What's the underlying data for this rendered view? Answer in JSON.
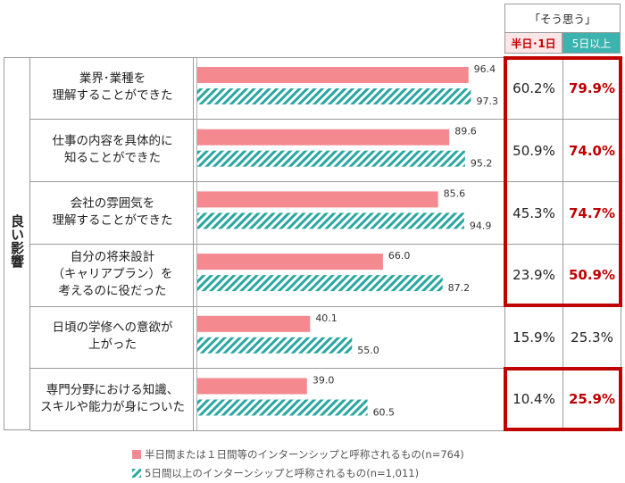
{
  "side_label": "良い影響",
  "header": {
    "group": "「そう思う」",
    "col1": "半日･1日",
    "col2": "5日以上"
  },
  "colors": {
    "series1": "#f4898f",
    "series2": "#2aa7a0",
    "highlight": "#ff0000",
    "col2_header_bg": "#3cb3ae",
    "col1_header_bg": "#fde6e8"
  },
  "rows": [
    {
      "label": "業界･業種を\n理解することができた",
      "short": "96.4",
      "long": "97.3",
      "pct_short": "60.2%",
      "pct_long": "79.9%"
    },
    {
      "label": "仕事の内容を具体的に\n知ることができた",
      "short": "89.6",
      "long": "95.2",
      "pct_short": "50.9%",
      "pct_long": "74.0%"
    },
    {
      "label": "会社の雰囲気を\n理解することができた",
      "short": "85.6",
      "long": "94.9",
      "pct_short": "45.3%",
      "pct_long": "74.7%"
    },
    {
      "label": "自分の将来設計\n（キャリアプラン）を\n考えるのに役だった",
      "short": "66.0",
      "long": "87.2",
      "pct_short": "23.9%",
      "pct_long": "50.9%"
    },
    {
      "label": "日頃の学修への意欲が\n上がった",
      "short": "40.1",
      "long": "55.0",
      "pct_short": "15.9%",
      "pct_long": "25.3%"
    },
    {
      "label": "専門分野における知識、\nスキルや能力が身についた",
      "short": "39.0",
      "long": "60.5",
      "pct_short": "10.4%",
      "pct_long": "25.9%"
    }
  ],
  "chart_data": {
    "type": "bar",
    "orientation": "horizontal",
    "categories": [
      "業界･業種を理解することができた",
      "仕事の内容を具体的に知ることができた",
      "会社の雰囲気を理解することができた",
      "自分の将来設計（キャリアプラン）を考えるのに役だった",
      "日頃の学修への意欲が上がった",
      "専門分野における知識、スキルや能力が身についた"
    ],
    "series": [
      {
        "name": "半日間または１日間等のインターンシップと呼称されるもの(n=764)",
        "values": [
          96.4,
          89.6,
          85.6,
          66.0,
          40.1,
          39.0
        ]
      },
      {
        "name": "5日間以上のインターンシップと呼称されるもの(n=1,011)",
        "values": [
          97.3,
          95.2,
          94.9,
          87.2,
          55.0,
          60.5
        ]
      }
    ],
    "xlim": [
      0,
      100
    ],
    "legend": "bottom"
  }
}
